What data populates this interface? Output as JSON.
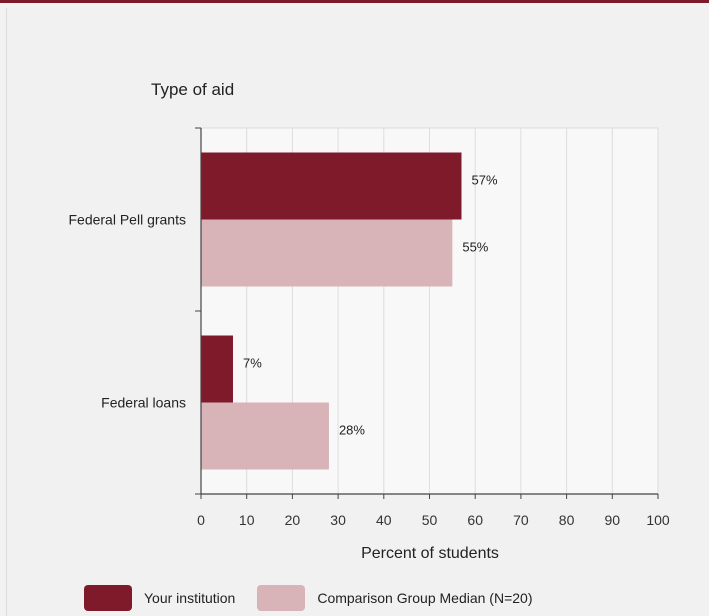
{
  "chart_data": {
    "type": "bar",
    "orientation": "horizontal",
    "title": "Type of aid",
    "xlabel": "Percent of students",
    "ylabel": "",
    "categories": [
      "Federal Pell grants",
      "Federal loans"
    ],
    "series": [
      {
        "name": "Your institution",
        "values": [
          57,
          7
        ],
        "labels": [
          "57%",
          "7%"
        ],
        "color": "#7f1a2b"
      },
      {
        "name": "Comparison Group Median (N=20)",
        "values": [
          55,
          28
        ],
        "labels": [
          "55%",
          "28%"
        ],
        "color": "#d8b3b8"
      }
    ],
    "xlim": [
      0,
      100
    ],
    "xticks": [
      0,
      10,
      20,
      30,
      40,
      50,
      60,
      70,
      80,
      90,
      100
    ],
    "tick_labels": [
      "0",
      "10",
      "20",
      "30",
      "40",
      "50",
      "60",
      "70",
      "80",
      "90",
      "100"
    ],
    "grid": true,
    "legend_position": "bottom"
  }
}
